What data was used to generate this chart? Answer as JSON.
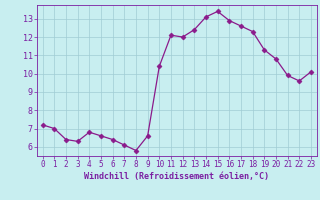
{
  "x": [
    0,
    1,
    2,
    3,
    4,
    5,
    6,
    7,
    8,
    9,
    10,
    11,
    12,
    13,
    14,
    15,
    16,
    17,
    18,
    19,
    20,
    21,
    22,
    23
  ],
  "y": [
    7.2,
    7.0,
    6.4,
    6.3,
    6.8,
    6.6,
    6.4,
    6.1,
    5.8,
    6.6,
    10.4,
    12.1,
    12.0,
    12.4,
    13.1,
    13.4,
    12.9,
    12.6,
    12.3,
    11.3,
    10.8,
    9.9,
    9.6,
    10.1
  ],
  "line_color": "#8b1a8b",
  "marker": "D",
  "marker_size": 2.5,
  "bg_color": "#c8eef0",
  "grid_color": "#a0ccd4",
  "xlabel": "Windchill (Refroidissement éolien,°C)",
  "xlabel_color": "#7b1fa2",
  "tick_color": "#7b1fa2",
  "ylim": [
    5.5,
    13.75
  ],
  "xlim": [
    -0.5,
    23.5
  ],
  "yticks": [
    6,
    7,
    8,
    9,
    10,
    11,
    12,
    13
  ],
  "xticks": [
    0,
    1,
    2,
    3,
    4,
    5,
    6,
    7,
    8,
    9,
    10,
    11,
    12,
    13,
    14,
    15,
    16,
    17,
    18,
    19,
    20,
    21,
    22,
    23
  ]
}
